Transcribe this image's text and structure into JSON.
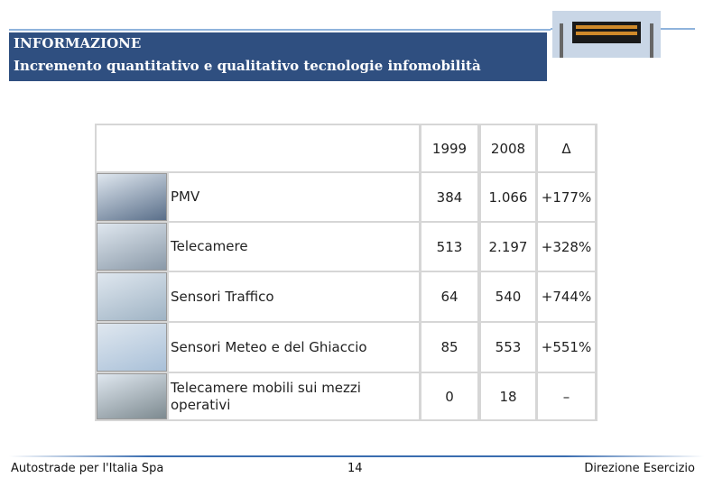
{
  "header": {
    "title": "INFORMAZIONE",
    "subtitle": "Incremento quantitativo e qualitativo tecnologie infomobilità"
  },
  "table": {
    "columns": [
      "1999",
      "2008",
      "Δ"
    ],
    "rows": [
      {
        "label": "PMV",
        "values": [
          "384",
          "1.066",
          "+177%"
        ]
      },
      {
        "label": "Telecamere",
        "values": [
          "513",
          "2.197",
          "+328%"
        ]
      },
      {
        "label": "Sensori Traffico",
        "values": [
          "64",
          "540",
          "+744%"
        ]
      },
      {
        "label": "Sensori Meteo e del Ghiaccio",
        "values": [
          "85",
          "553",
          "+551%"
        ]
      },
      {
        "label": "Telecamere mobili sui mezzi operativi",
        "values": [
          "0",
          "18",
          "–"
        ]
      }
    ]
  },
  "footer": {
    "left": "Autostrade per l'Italia Spa",
    "center": "14",
    "right": "Direzione Esercizio"
  }
}
